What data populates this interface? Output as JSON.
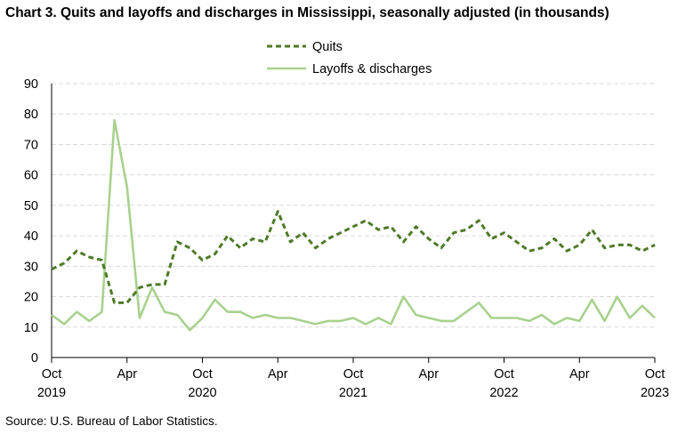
{
  "chart_title": "Chart 3. Quits and layoffs and discharges in Mississippi, seasonally adjusted (in thousands)",
  "source": "Source: U.S. Bureau of Labor Statistics.",
  "chart_data": {
    "type": "line",
    "title": "Chart 3. Quits and layoffs and discharges in Mississippi, seasonally adjusted (in thousands)",
    "xlabel": "",
    "ylabel": "",
    "ylim": [
      0,
      90
    ],
    "yticks": [
      0,
      10,
      20,
      30,
      40,
      50,
      60,
      70,
      80,
      90
    ],
    "grid": "horizontal dashed",
    "legend_position": "top-center",
    "x": [
      "2019-10",
      "2019-11",
      "2019-12",
      "2020-01",
      "2020-02",
      "2020-03",
      "2020-04",
      "2020-05",
      "2020-06",
      "2020-07",
      "2020-08",
      "2020-09",
      "2020-10",
      "2020-11",
      "2020-12",
      "2021-01",
      "2021-02",
      "2021-03",
      "2021-04",
      "2021-05",
      "2021-06",
      "2021-07",
      "2021-08",
      "2021-09",
      "2021-10",
      "2021-11",
      "2021-12",
      "2022-01",
      "2022-02",
      "2022-03",
      "2022-04",
      "2022-05",
      "2022-06",
      "2022-07",
      "2022-08",
      "2022-09",
      "2022-10",
      "2022-11",
      "2022-12",
      "2023-01",
      "2023-02",
      "2023-03",
      "2023-04",
      "2023-05",
      "2023-06",
      "2023-07",
      "2023-08",
      "2023-09",
      "2023-10"
    ],
    "x_tick_labels": [
      {
        "index": 0,
        "month": "Oct",
        "year": "2019"
      },
      {
        "index": 6,
        "month": "Apr",
        "year": ""
      },
      {
        "index": 12,
        "month": "Oct",
        "year": "2020"
      },
      {
        "index": 18,
        "month": "Apr",
        "year": ""
      },
      {
        "index": 24,
        "month": "Oct",
        "year": "2021"
      },
      {
        "index": 30,
        "month": "Apr",
        "year": ""
      },
      {
        "index": 36,
        "month": "Oct",
        "year": "2022"
      },
      {
        "index": 42,
        "month": "Apr",
        "year": ""
      },
      {
        "index": 48,
        "month": "Oct",
        "year": "2023"
      }
    ],
    "series": [
      {
        "name": "Quits",
        "color": "#4f7a28",
        "style": "dashed",
        "values": [
          29,
          31,
          35,
          33,
          32,
          18,
          18,
          23,
          24,
          24,
          38,
          36,
          32,
          34,
          40,
          36,
          39,
          38,
          48,
          38,
          41,
          36,
          39,
          41,
          43,
          45,
          42,
          43,
          38,
          43,
          39,
          36,
          41,
          42,
          45,
          39,
          41,
          38,
          35,
          36,
          39,
          35,
          37,
          42,
          36,
          37,
          37,
          35,
          37
        ]
      },
      {
        "name": "Layoffs & discharges",
        "color": "#a9d18e",
        "style": "solid",
        "values": [
          14,
          11,
          15,
          12,
          15,
          78,
          56,
          13,
          23,
          15,
          14,
          9,
          13,
          19,
          15,
          15,
          13,
          14,
          13,
          13,
          12,
          11,
          12,
          12,
          13,
          11,
          13,
          11,
          20,
          14,
          13,
          12,
          12,
          15,
          18,
          13,
          13,
          13,
          12,
          14,
          11,
          13,
          12,
          19,
          12,
          20,
          13,
          17,
          13
        ]
      }
    ]
  }
}
